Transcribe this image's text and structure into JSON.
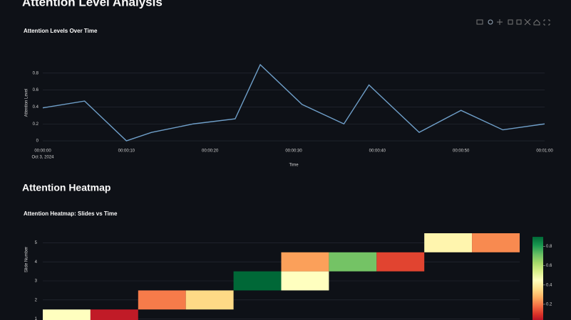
{
  "header": {
    "title": "Attention Level Analysis"
  },
  "section": {
    "title": "Attention Heatmap"
  },
  "chart_data": [
    {
      "type": "line",
      "title": "Attention Levels Over Time",
      "x_label": "Time",
      "y_label": "Attention Level",
      "date_label": "Oct 3, 2024",
      "x": [
        0,
        5,
        10,
        13,
        18,
        23,
        26,
        31,
        36,
        39,
        45,
        50,
        55,
        60
      ],
      "series": [
        {
          "color": "#6f9fc9",
          "values": [
            0.39,
            0.47,
            0,
            0.1,
            0.2,
            0.26,
            0.9,
            0.43,
            0.2,
            0.66,
            0.1,
            0.36,
            0.13,
            0.2
          ]
        }
      ],
      "xlim": [
        0,
        60
      ],
      "xticks": [
        {
          "value": 0,
          "label": "00:00:00"
        },
        {
          "value": 10,
          "label": "00:00:10"
        },
        {
          "value": 20,
          "label": "00:00:20"
        },
        {
          "value": 30,
          "label": "00:00:30"
        },
        {
          "value": 40,
          "label": "00:00:40"
        },
        {
          "value": 50,
          "label": "00:00:50"
        },
        {
          "value": 60,
          "label": "00:01:00"
        }
      ],
      "ylim": [
        -0.05,
        0.95
      ],
      "yticks": [
        0,
        0.2,
        0.4,
        0.6,
        0.8
      ],
      "grid": true
    },
    {
      "type": "heatmap",
      "title": "Attention Heatmap: Slides vs Time",
      "y_label": "Slide Number",
      "categories": [
        null,
        null,
        null,
        null,
        null,
        null,
        null,
        null,
        null,
        null
      ],
      "z": [
        [
          0.45,
          0.05,
          null,
          null,
          null,
          null,
          null,
          null,
          null,
          null
        ],
        [
          null,
          null,
          0.2,
          0.35,
          null,
          null,
          null,
          null,
          null,
          null
        ],
        [
          null,
          null,
          null,
          null,
          0.9,
          0.45,
          null,
          null,
          null,
          null
        ],
        [
          null,
          null,
          null,
          null,
          null,
          0.25,
          0.7,
          0.12,
          null,
          null
        ],
        [
          null,
          null,
          null,
          null,
          null,
          null,
          null,
          null,
          0.42,
          0.22
        ]
      ],
      "ylim": [
        0.5,
        5.5
      ],
      "yticks": [
        1,
        2,
        3,
        4,
        5
      ],
      "zlim": [
        0,
        0.9
      ],
      "colorbar_ticks": [
        0.2,
        0.4,
        0.6,
        0.8
      ],
      "colorscale": [
        "#a50026",
        "#d73027",
        "#f46d43",
        "#fdae61",
        "#fee08b",
        "#ffffbf",
        "#d9ef8b",
        "#a6d96a",
        "#66bd63",
        "#1a9850",
        "#006837"
      ],
      "grid": true
    }
  ]
}
